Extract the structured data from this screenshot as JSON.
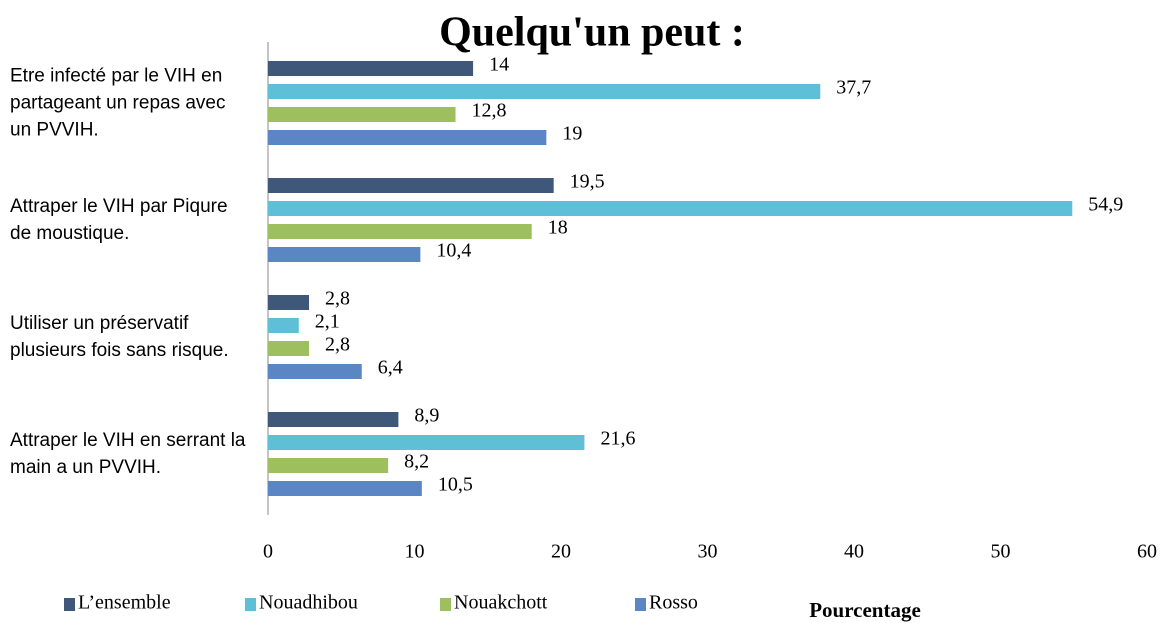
{
  "chart_data": {
    "type": "bar",
    "orientation": "horizontal",
    "title": "Quelqu'un peut :",
    "categories": [
      "Etre infecté par le VIH en partageant un repas avec un PVVIH.",
      "Attraper le VIH par Piqure de moustique.",
      "Utiliser un préservatif plusieurs fois sans risque.",
      "Attraper le VIH en serrant la main a un PVVIH."
    ],
    "series": [
      {
        "name": "L’ensemble",
        "color": "#3f5779",
        "values": [
          14,
          19.5,
          2.8,
          8.9
        ],
        "value_labels": [
          "14",
          "19,5",
          "2,8",
          "8,9"
        ]
      },
      {
        "name": "Nouadhibou",
        "color": "#5fbfd6",
        "values": [
          37.7,
          54.9,
          2.1,
          21.6
        ],
        "value_labels": [
          "37,7",
          "54,9",
          "2,1",
          "21,6"
        ]
      },
      {
        "name": "Nouakchott",
        "color": "#9ebf5e",
        "values": [
          12.8,
          18,
          2.8,
          8.2
        ],
        "value_labels": [
          "12,8",
          "18",
          "2,8",
          "8,2"
        ]
      },
      {
        "name": "Rosso",
        "color": "#5b86c4",
        "values": [
          19,
          10.4,
          6.4,
          10.5
        ],
        "value_labels": [
          "19",
          "10,4",
          "6,4",
          "10,5"
        ]
      }
    ],
    "x_label": "Pourcentage",
    "xlim": [
      0,
      60
    ],
    "xticks": [
      0,
      10,
      20,
      30,
      40,
      50,
      60
    ],
    "grid": false
  }
}
